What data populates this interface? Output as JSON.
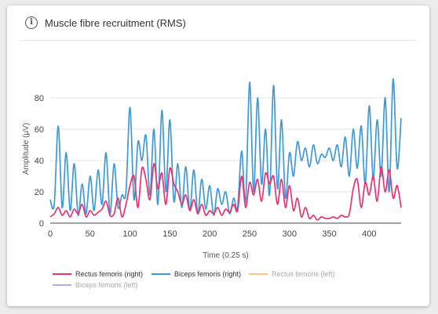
{
  "card": {
    "title": "Muscle fibre recruitment (RMS)",
    "icon": "info-circle-icon"
  },
  "chart_data": {
    "type": "line",
    "title": "Muscle fibre recruitment (RMS)",
    "xlabel": "Time (0.25 s)",
    "ylabel": "Amplitude (μV)",
    "xlim": [
      0,
      440
    ],
    "ylim": [
      0,
      95
    ],
    "xticks": [
      "0",
      "50",
      "100",
      "150",
      "200",
      "250",
      "300",
      "350",
      "400"
    ],
    "yticks": [
      "0",
      "20",
      "40",
      "60",
      "80"
    ],
    "grid": true,
    "legend_position": "bottom",
    "series": [
      {
        "name": "Rectus femoris (right)",
        "color": "#e8336f",
        "visible": true,
        "x": [
          0,
          5,
          10,
          15,
          20,
          25,
          30,
          35,
          40,
          45,
          50,
          55,
          60,
          65,
          70,
          75,
          80,
          85,
          90,
          95,
          100,
          105,
          110,
          115,
          120,
          125,
          130,
          135,
          140,
          145,
          150,
          155,
          160,
          165,
          170,
          175,
          180,
          185,
          190,
          195,
          200,
          205,
          210,
          215,
          220,
          225,
          230,
          235,
          240,
          245,
          250,
          255,
          260,
          265,
          270,
          275,
          280,
          285,
          290,
          295,
          300,
          305,
          310,
          315,
          320,
          325,
          330,
          335,
          340,
          345,
          350,
          355,
          360,
          365,
          370,
          375,
          380,
          385,
          390,
          395,
          400,
          405,
          410,
          415,
          420,
          425,
          430,
          435,
          440
        ],
        "y": [
          4,
          6,
          10,
          5,
          8,
          4,
          9,
          6,
          12,
          4,
          8,
          5,
          7,
          9,
          14,
          5,
          6,
          16,
          4,
          12,
          24,
          30,
          10,
          35,
          28,
          15,
          38,
          22,
          32,
          12,
          35,
          25,
          20,
          12,
          18,
          8,
          15,
          6,
          12,
          5,
          8,
          6,
          10,
          5,
          9,
          7,
          12,
          8,
          30,
          10,
          26,
          18,
          28,
          14,
          32,
          25,
          30,
          12,
          28,
          10,
          24,
          8,
          16,
          4,
          10,
          3,
          5,
          2,
          4,
          3,
          3,
          4,
          3,
          5,
          4,
          6,
          22,
          28,
          10,
          26,
          18,
          30,
          14,
          36,
          20,
          34,
          16,
          24,
          10
        ]
      },
      {
        "name": "Biceps femoris (right)",
        "color": "#3b9ad9",
        "visible": true,
        "x": [
          0,
          5,
          10,
          15,
          20,
          25,
          30,
          35,
          40,
          45,
          50,
          55,
          60,
          65,
          70,
          75,
          80,
          85,
          90,
          95,
          100,
          105,
          110,
          115,
          120,
          125,
          130,
          135,
          140,
          145,
          150,
          155,
          160,
          165,
          170,
          175,
          180,
          185,
          190,
          195,
          200,
          205,
          210,
          215,
          220,
          225,
          230,
          235,
          240,
          245,
          250,
          255,
          260,
          265,
          270,
          275,
          280,
          285,
          290,
          295,
          300,
          305,
          310,
          315,
          320,
          325,
          330,
          335,
          340,
          345,
          350,
          355,
          360,
          365,
          370,
          375,
          380,
          385,
          390,
          395,
          400,
          405,
          410,
          415,
          420,
          425,
          430,
          435,
          440
        ],
        "y": [
          15,
          12,
          62,
          10,
          45,
          8,
          38,
          5,
          25,
          6,
          30,
          8,
          34,
          12,
          45,
          6,
          38,
          10,
          18,
          20,
          74,
          15,
          52,
          40,
          56,
          18,
          60,
          12,
          72,
          20,
          66,
          14,
          38,
          10,
          36,
          8,
          34,
          6,
          28,
          9,
          24,
          5,
          22,
          12,
          20,
          6,
          16,
          10,
          46,
          14,
          90,
          20,
          80,
          25,
          60,
          18,
          88,
          22,
          66,
          16,
          45,
          30,
          52,
          40,
          48,
          36,
          50,
          38,
          44,
          42,
          48,
          40,
          50,
          36,
          55,
          30,
          60,
          35,
          62,
          25,
          75,
          28,
          66,
          30,
          80,
          20,
          92,
          35,
          67
        ]
      },
      {
        "name": "Rectus femoris (left)",
        "color": "#f7c58e",
        "visible": false,
        "x": [],
        "y": []
      },
      {
        "name": "Biceps femoris (left)",
        "color": "#b9a7ec",
        "visible": false,
        "x": [],
        "y": []
      }
    ]
  }
}
